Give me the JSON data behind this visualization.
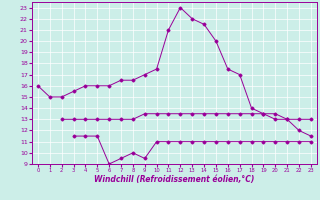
{
  "xlabel": "Windchill (Refroidissement éolien,°C)",
  "bg_color": "#cceee8",
  "line1_x": [
    0,
    1,
    2,
    3,
    4,
    5,
    6,
    7,
    8,
    9,
    10,
    11,
    12,
    13,
    14,
    15,
    16,
    17,
    18,
    19,
    20,
    21,
    22,
    23
  ],
  "line1_y": [
    16,
    15,
    15,
    15.5,
    16,
    16,
    16,
    16.5,
    16.5,
    17,
    17.5,
    21,
    23,
    22,
    21.5,
    20,
    17.5,
    17,
    14,
    13.5,
    13.5,
    13,
    12,
    11.5
  ],
  "line2_x": [
    2,
    3,
    4,
    5,
    6,
    7,
    8,
    9,
    10,
    11,
    12,
    13,
    14,
    15,
    16,
    17,
    18,
    19,
    20,
    21,
    22,
    23
  ],
  "line2_y": [
    13,
    13,
    13,
    13,
    13,
    13,
    13,
    13.5,
    13.5,
    13.5,
    13.5,
    13.5,
    13.5,
    13.5,
    13.5,
    13.5,
    13.5,
    13.5,
    13,
    13,
    13,
    13
  ],
  "line3_x": [
    3,
    4,
    5,
    6,
    7,
    8,
    9,
    10,
    11,
    12,
    13,
    14,
    15,
    16,
    17,
    18,
    19,
    20,
    21,
    22,
    23
  ],
  "line3_y": [
    11.5,
    11.5,
    11.5,
    9,
    9.5,
    10,
    9.5,
    11,
    11,
    11,
    11,
    11,
    11,
    11,
    11,
    11,
    11,
    11,
    11,
    11,
    11
  ],
  "line_color": "#990099",
  "marker": "D",
  "marker_size": 1.5,
  "line_width": 0.7,
  "xlim": [
    -0.5,
    23.5
  ],
  "ylim": [
    9,
    23.5
  ],
  "yticks": [
    9,
    10,
    11,
    12,
    13,
    14,
    15,
    16,
    17,
    18,
    19,
    20,
    21,
    22,
    23
  ],
  "xticks": [
    0,
    1,
    2,
    3,
    4,
    5,
    6,
    7,
    8,
    9,
    10,
    11,
    12,
    13,
    14,
    15,
    16,
    17,
    18,
    19,
    20,
    21,
    22,
    23
  ],
  "ytick_fontsize": 4.5,
  "xtick_fontsize": 3.8,
  "xlabel_fontsize": 5.5
}
